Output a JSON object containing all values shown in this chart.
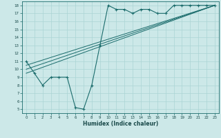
{
  "xlabel": "Humidex (Indice chaleur)",
  "ylabel": "",
  "bg_color": "#cce8e8",
  "line_color": "#1a6b6b",
  "grid_color": "#aad4d4",
  "xlim": [
    -0.5,
    23.5
  ],
  "ylim": [
    4.5,
    18.5
  ],
  "xticks": [
    0,
    1,
    2,
    3,
    4,
    5,
    6,
    7,
    8,
    9,
    10,
    11,
    12,
    13,
    14,
    15,
    16,
    17,
    18,
    19,
    20,
    21,
    22,
    23
  ],
  "yticks": [
    5,
    6,
    7,
    8,
    9,
    10,
    11,
    12,
    13,
    14,
    15,
    16,
    17,
    18
  ],
  "data_line": {
    "x": [
      0,
      1,
      2,
      3,
      4,
      5,
      6,
      7,
      8,
      9,
      10,
      11,
      12,
      13,
      14,
      15,
      16,
      17,
      18,
      19,
      20,
      21,
      22,
      23
    ],
    "y": [
      11,
      9.5,
      8,
      9,
      9,
      9,
      5.2,
      5,
      8,
      13,
      18,
      17.5,
      17.5,
      17,
      17.5,
      17.5,
      17,
      17,
      18,
      18,
      18,
      18,
      18,
      18
    ]
  },
  "trend_line1": {
    "x": [
      0,
      23
    ],
    "y": [
      9.5,
      18
    ]
  },
  "trend_line2": {
    "x": [
      0,
      23
    ],
    "y": [
      10.0,
      18
    ]
  },
  "trend_line3": {
    "x": [
      0,
      23
    ],
    "y": [
      10.5,
      18
    ]
  }
}
